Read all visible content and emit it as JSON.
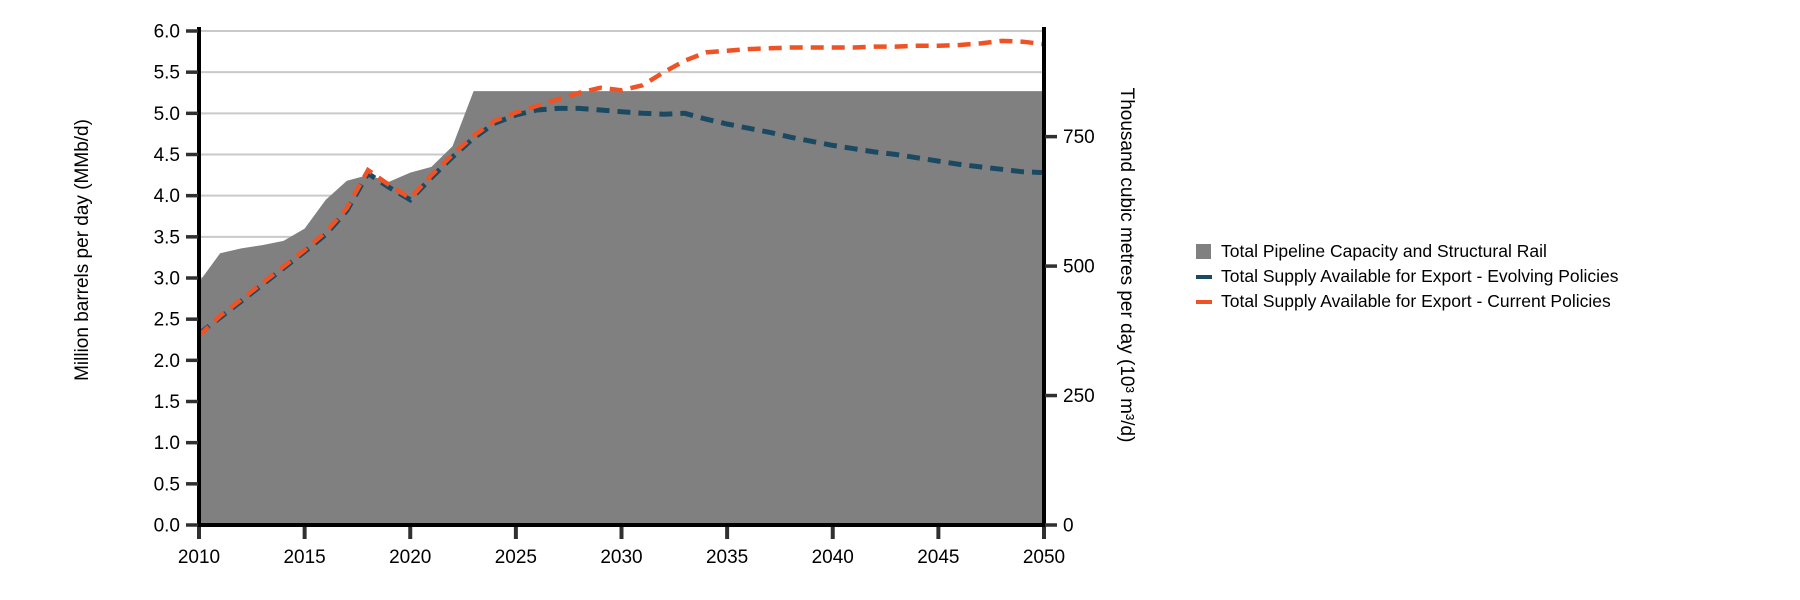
{
  "chart_data": {
    "type": "area+line",
    "title": "",
    "x_years": [
      2010,
      2011,
      2012,
      2013,
      2014,
      2015,
      2016,
      2017,
      2018,
      2019,
      2020,
      2021,
      2022,
      2023,
      2024,
      2025,
      2026,
      2027,
      2028,
      2029,
      2030,
      2031,
      2032,
      2033,
      2034,
      2035,
      2036,
      2037,
      2038,
      2039,
      2040,
      2041,
      2042,
      2043,
      2044,
      2045,
      2046,
      2047,
      2048,
      2049,
      2050
    ],
    "series": [
      {
        "name": "Total Pipeline Capacity and Structural Rail",
        "type": "area",
        "color": "#808080",
        "values": [
          2.95,
          3.3,
          3.36,
          3.4,
          3.45,
          3.6,
          3.95,
          4.18,
          4.25,
          4.17,
          4.28,
          4.35,
          4.6,
          5.27,
          5.27,
          5.27,
          5.27,
          5.27,
          5.27,
          5.27,
          5.27,
          5.27,
          5.27,
          5.27,
          5.27,
          5.27,
          5.27,
          5.27,
          5.27,
          5.27,
          5.27,
          5.27,
          5.27,
          5.27,
          5.27,
          5.27,
          5.27,
          5.27,
          5.27,
          5.27,
          5.27
        ]
      },
      {
        "name": "Total Supply Available for Export - Evolving Policies",
        "type": "dashed-line",
        "color": "#1C4962",
        "values": [
          2.32,
          2.52,
          2.72,
          2.92,
          3.12,
          3.32,
          3.53,
          3.82,
          4.27,
          4.1,
          3.95,
          4.22,
          4.47,
          4.7,
          4.88,
          4.98,
          5.04,
          5.06,
          5.06,
          5.04,
          5.02,
          5.0,
          4.99,
          5.0,
          4.93,
          4.87,
          4.82,
          4.77,
          4.71,
          4.66,
          4.61,
          4.57,
          4.53,
          4.5,
          4.46,
          4.42,
          4.38,
          4.35,
          4.32,
          4.29,
          4.28
        ]
      },
      {
        "name": "Total Supply Available for Export - Current Policies",
        "type": "dashed-line",
        "color": "#EE5225",
        "values": [
          2.3,
          2.54,
          2.74,
          2.94,
          3.14,
          3.34,
          3.56,
          3.85,
          4.31,
          4.13,
          3.97,
          4.25,
          4.5,
          4.73,
          4.91,
          5.01,
          5.09,
          5.17,
          5.25,
          5.31,
          5.28,
          5.34,
          5.5,
          5.64,
          5.74,
          5.76,
          5.78,
          5.79,
          5.8,
          5.8,
          5.8,
          5.8,
          5.81,
          5.81,
          5.82,
          5.82,
          5.83,
          5.85,
          5.88,
          5.87,
          5.84
        ]
      }
    ],
    "left_axis": {
      "label": "Million barrels per day (MMb/d)",
      "tick_labels": [
        "0.0",
        "0.5",
        "1.0",
        "1.5",
        "2.0",
        "2.5",
        "3.0",
        "3.5",
        "4.0",
        "4.5",
        "5.0",
        "5.5",
        "6.0"
      ],
      "min": 0,
      "max": 6
    },
    "right_axis": {
      "label": "Thousand cubic metres per day (10³ m³/d)",
      "tick_labels": [
        "0",
        "250",
        "500",
        "750"
      ],
      "tick_values": [
        0,
        250,
        500,
        750
      ],
      "max_value": 954
    },
    "x_axis": {
      "tick_labels": [
        "2010",
        "2015",
        "2020",
        "2025",
        "2030",
        "2035",
        "2040",
        "2045",
        "2050"
      ],
      "tick_values": [
        2010,
        2015,
        2020,
        2025,
        2030,
        2035,
        2040,
        2045,
        2050
      ],
      "min": 2010,
      "max": 2050
    },
    "grid": {
      "horizontal_step": 0.5,
      "color": "#C9C9C9"
    },
    "axis_color": "#000000",
    "tick_color": "#303030",
    "text_color": "#000000",
    "legend_position": "right"
  }
}
